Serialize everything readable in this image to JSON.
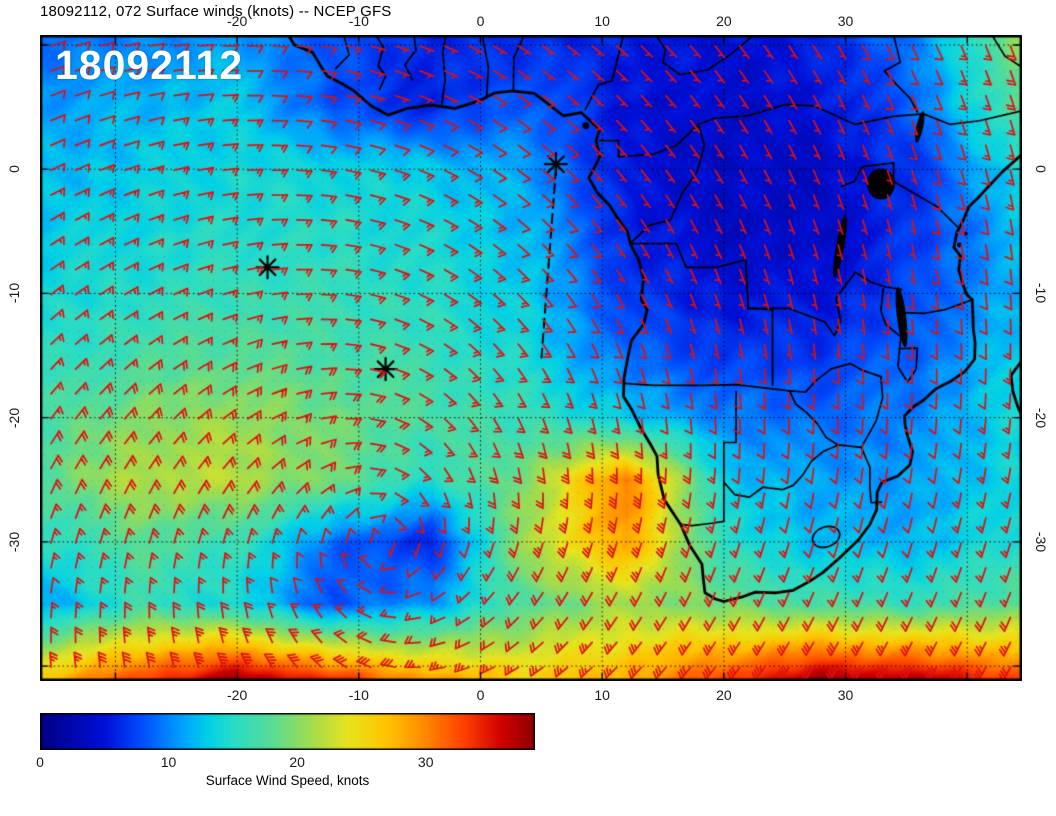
{
  "title": "18092112, 072 Surface winds (knots) -- NCEP GFS",
  "overlay_label": "18092112",
  "style": {
    "barb_color": "#dd1111",
    "line_color": "#000000",
    "text_color": "#1a1a1a"
  },
  "axes": {
    "lon_ticks": [
      -20,
      -10,
      0,
      10,
      20,
      30
    ],
    "lat_ticks": [
      0,
      -10,
      -20,
      -30
    ],
    "lon_range": [
      -36.2,
      44.5
    ],
    "lat_range": [
      10.8,
      -41.2
    ]
  },
  "colorbar": {
    "label": "Surface Wind Speed, knots",
    "ticks": [
      0,
      10,
      20,
      30
    ],
    "min": 0,
    "max": 38.5,
    "stops": [
      [
        0,
        "#000082"
      ],
      [
        5,
        "#0010d8"
      ],
      [
        8,
        "#0050ff"
      ],
      [
        11,
        "#00a0ff"
      ],
      [
        13,
        "#00d0e8"
      ],
      [
        15,
        "#28dcc8"
      ],
      [
        18,
        "#58dc96"
      ],
      [
        21,
        "#a0dc50"
      ],
      [
        24,
        "#e8e41e"
      ],
      [
        27,
        "#ffc400"
      ],
      [
        30,
        "#ff8800"
      ],
      [
        33,
        "#ff4000"
      ],
      [
        36,
        "#d00000"
      ],
      [
        38.5,
        "#8a0000"
      ]
    ]
  },
  "chart_data": {
    "type": "heatmap",
    "title": "18092112, 072 Surface winds (knots) -- NCEP GFS",
    "units": "knots",
    "lon_grid": [
      -36,
      -28,
      -20,
      -12,
      -4,
      4,
      12,
      20,
      28,
      36,
      44
    ],
    "lat_grid": [
      11,
      5,
      0,
      -5,
      -10,
      -15,
      -20,
      -25,
      -30,
      -35,
      -41
    ],
    "speed_grid": [
      [
        9,
        10,
        11,
        8,
        6,
        6,
        6,
        5,
        6,
        10,
        20
      ],
      [
        11,
        12,
        13,
        8,
        6,
        9,
        5,
        4,
        5,
        9,
        18
      ],
      [
        12,
        13,
        14,
        14,
        13,
        11,
        5,
        4,
        4,
        7,
        14
      ],
      [
        13,
        14,
        15,
        15,
        14,
        12,
        6,
        4,
        4,
        7,
        12
      ],
      [
        14,
        15,
        16,
        16,
        15,
        13,
        7,
        5,
        5,
        8,
        12
      ],
      [
        15,
        17,
        18,
        17,
        16,
        14,
        9,
        7,
        7,
        9,
        13
      ],
      [
        17,
        20,
        21,
        19,
        17,
        16,
        13,
        10,
        9,
        10,
        14
      ],
      [
        18,
        22,
        22,
        19,
        15,
        20,
        31,
        13,
        11,
        11,
        14
      ],
      [
        15,
        18,
        16,
        9,
        6,
        22,
        29,
        15,
        12,
        12,
        15
      ],
      [
        11,
        16,
        14,
        8,
        11,
        18,
        21,
        19,
        17,
        16,
        18
      ],
      [
        27,
        33,
        38,
        34,
        29,
        26,
        28,
        33,
        38,
        37,
        33
      ]
    ],
    "circulation_center": {
      "lon": -8,
      "lat": -30,
      "sense": "anticyclonic-southern-hemisphere"
    },
    "markers": [
      {
        "lon": -17.5,
        "lat": -7.9
      },
      {
        "lon": -7.8,
        "lat": -16.1
      },
      {
        "lon": 6.2,
        "lat": 0.4
      }
    ],
    "route": [
      [
        6.2,
        0.0
      ],
      [
        5.0,
        -15.3
      ]
    ]
  },
  "geo": {
    "coastlines": [
      [
        [
          -15.9,
          11.0
        ],
        [
          -15.3,
          10.0
        ],
        [
          -13.8,
          9.4
        ],
        [
          -13.2,
          8.4
        ],
        [
          -12.6,
          7.5
        ],
        [
          -11.4,
          6.9
        ],
        [
          -10.4,
          6.3
        ],
        [
          -9.0,
          5.1
        ],
        [
          -7.6,
          4.35
        ],
        [
          -6.0,
          4.9
        ],
        [
          -4.1,
          5.15
        ],
        [
          -2.1,
          4.9
        ],
        [
          -0.1,
          5.5
        ],
        [
          1.2,
          6.15
        ],
        [
          2.6,
          6.3
        ],
        [
          4.4,
          6.1
        ],
        [
          5.5,
          5.3
        ],
        [
          6.8,
          4.3
        ],
        [
          8.3,
          4.55
        ],
        [
          9.0,
          3.9
        ],
        [
          9.8,
          3.2
        ],
        [
          9.5,
          2.3
        ],
        [
          9.8,
          1.0
        ],
        [
          9.45,
          0.3
        ],
        [
          8.9,
          -0.7
        ],
        [
          9.6,
          -1.9
        ],
        [
          10.6,
          -2.9
        ],
        [
          11.3,
          -4.0
        ],
        [
          12.1,
          -5.1
        ],
        [
          12.35,
          -6.1
        ],
        [
          13.0,
          -7.3
        ],
        [
          13.4,
          -8.8
        ],
        [
          13.2,
          -10.5
        ],
        [
          13.7,
          -11.3
        ],
        [
          13.4,
          -12.5
        ],
        [
          12.4,
          -13.8
        ],
        [
          12.1,
          -15.2
        ],
        [
          11.8,
          -16.8
        ],
        [
          11.75,
          -18.3
        ],
        [
          12.4,
          -19.3
        ],
        [
          13.2,
          -20.9
        ],
        [
          14.0,
          -22.2
        ],
        [
          14.5,
          -23.1
        ],
        [
          14.6,
          -24.6
        ],
        [
          15.1,
          -26.6
        ],
        [
          16.45,
          -28.6
        ],
        [
          17.2,
          -30.3
        ],
        [
          18.2,
          -31.8
        ],
        [
          18.3,
          -32.9
        ],
        [
          18.45,
          -34.1
        ],
        [
          19.3,
          -34.6
        ],
        [
          20.0,
          -34.8
        ],
        [
          21.6,
          -34.4
        ],
        [
          22.6,
          -34.05
        ],
        [
          24.2,
          -34.1
        ],
        [
          25.7,
          -33.9
        ],
        [
          27.0,
          -33.2
        ],
        [
          28.1,
          -32.5
        ],
        [
          29.5,
          -31.3
        ],
        [
          31.05,
          -29.85
        ],
        [
          32.0,
          -28.6
        ],
        [
          32.55,
          -27.4
        ],
        [
          32.6,
          -26.0
        ],
        [
          33.0,
          -25.2
        ],
        [
          34.3,
          -24.7
        ],
        [
          35.3,
          -23.8
        ],
        [
          35.5,
          -22.7
        ],
        [
          35.1,
          -21.5
        ],
        [
          34.9,
          -20.6
        ],
        [
          34.85,
          -19.85
        ],
        [
          35.6,
          -19.1
        ],
        [
          36.4,
          -18.6
        ],
        [
          37.4,
          -17.7
        ],
        [
          38.6,
          -17.1
        ],
        [
          39.8,
          -16.3
        ],
        [
          40.6,
          -15.3
        ],
        [
          40.65,
          -14.0
        ],
        [
          40.5,
          -12.9
        ],
        [
          40.45,
          -11.4
        ],
        [
          40.4,
          -10.5
        ],
        [
          39.9,
          -10.0
        ],
        [
          39.6,
          -9.1
        ],
        [
          39.3,
          -8.1
        ],
        [
          39.45,
          -7.0
        ],
        [
          38.9,
          -6.3
        ],
        [
          39.15,
          -5.1
        ],
        [
          39.7,
          -4.05
        ],
        [
          40.15,
          -3.0
        ],
        [
          40.9,
          -2.3
        ],
        [
          41.5,
          -1.65
        ],
        [
          42.9,
          -0.2
        ],
        [
          44.5,
          1.2
        ]
      ],
      [
        [
          44.5,
          -15.4
        ],
        [
          43.6,
          -16.6
        ],
        [
          43.75,
          -17.9
        ],
        [
          44.15,
          -19.1
        ],
        [
          44.5,
          -19.9
        ]
      ]
    ],
    "borders": [
      [
        [
          -11.3,
          11
        ],
        [
          -10.8,
          9.2
        ],
        [
          -11.9,
          8.1
        ]
      ],
      [
        [
          -8.7,
          11
        ],
        [
          -8.0,
          9.8
        ],
        [
          -8.4,
          8.3
        ],
        [
          -7.8,
          7.5
        ],
        [
          -8.3,
          6.4
        ]
      ],
      [
        [
          -5.5,
          11
        ],
        [
          -5.3,
          9.6
        ],
        [
          -6.2,
          8.4
        ],
        [
          -5.6,
          7.2
        ]
      ],
      [
        [
          -3.2,
          5.1
        ],
        [
          -2.9,
          7.2
        ],
        [
          -3.1,
          9.4
        ],
        [
          -2.8,
          11
        ]
      ],
      [
        [
          0.5,
          5.8
        ],
        [
          0.65,
          8.2
        ],
        [
          0.1,
          11
        ]
      ],
      [
        [
          2.7,
          6.3
        ],
        [
          2.75,
          9.0
        ],
        [
          3.7,
          11
        ]
      ],
      [
        [
          8.6,
          4.8
        ],
        [
          9.7,
          6.8
        ],
        [
          10.8,
          7.1
        ],
        [
          11.8,
          11
        ]
      ],
      [
        [
          9.8,
          2.3
        ],
        [
          11.35,
          2.3
        ],
        [
          11.35,
          1.0
        ],
        [
          14.2,
          1.2
        ],
        [
          16.1,
          1.9
        ],
        [
          17.9,
          3.6
        ],
        [
          19.2,
          4.1
        ],
        [
          22,
          4.3
        ],
        [
          25,
          5.2
        ],
        [
          27.4,
          5.1
        ],
        [
          30.8,
          3.6
        ],
        [
          33.9,
          4.25
        ],
        [
          36.4,
          4.45
        ],
        [
          38.6,
          3.6
        ],
        [
          41,
          3.9
        ],
        [
          44.5,
          4.7
        ]
      ],
      [
        [
          12.4,
          -5.9
        ],
        [
          13.9,
          -4.5
        ],
        [
          15.6,
          -4.1
        ],
        [
          16.6,
          -1.9
        ],
        [
          17.8,
          -0.2
        ],
        [
          18.4,
          1.9
        ],
        [
          17.9,
          3.6
        ]
      ],
      [
        [
          12.4,
          -6.0
        ],
        [
          16.1,
          -6.0
        ],
        [
          16.9,
          -7.9
        ],
        [
          19.4,
          -7.9
        ],
        [
          21.8,
          -7.3
        ],
        [
          22.0,
          -11.2
        ]
      ],
      [
        [
          22.0,
          -11.2
        ],
        [
          25.3,
          -11.2
        ],
        [
          28.3,
          -12.3
        ],
        [
          29.1,
          -13.4
        ],
        [
          29.6,
          -12.2
        ],
        [
          29.2,
          -10.4
        ],
        [
          30.8,
          -8.3
        ]
      ],
      [
        [
          22.0,
          -11.2
        ],
        [
          24.0,
          -11.3
        ],
        [
          24.0,
          -17.4
        ]
      ],
      [
        [
          11.8,
          -17.25
        ],
        [
          14.2,
          -17.4
        ],
        [
          18.4,
          -17.4
        ],
        [
          21.0,
          -17.35
        ],
        [
          23.3,
          -17.6
        ],
        [
          25.4,
          -17.85
        ]
      ],
      [
        [
          21.0,
          -17.9
        ],
        [
          21.0,
          -22.0
        ],
        [
          20.0,
          -22.0
        ],
        [
          20.0,
          -28.35
        ],
        [
          19.0,
          -28.5
        ],
        [
          17.4,
          -28.7
        ],
        [
          16.45,
          -28.6
        ]
      ],
      [
        [
          20.0,
          -25.2
        ],
        [
          20.9,
          -26.2
        ],
        [
          22.1,
          -26.4
        ],
        [
          23.2,
          -25.6
        ],
        [
          24.8,
          -25.8
        ],
        [
          25.7,
          -25.45
        ],
        [
          26.5,
          -24.6
        ],
        [
          27.2,
          -23.5
        ],
        [
          28.2,
          -22.7
        ],
        [
          29.4,
          -22.2
        ],
        [
          31.3,
          -22.4
        ]
      ],
      [
        [
          25.4,
          -17.85
        ],
        [
          25.9,
          -18.9
        ],
        [
          26.8,
          -19.6
        ],
        [
          27.7,
          -20.5
        ],
        [
          28.4,
          -21.6
        ],
        [
          29.4,
          -22.2
        ]
      ],
      [
        [
          25.4,
          -17.85
        ],
        [
          26.7,
          -17.95
        ],
        [
          27.6,
          -17.0
        ],
        [
          28.85,
          -16.05
        ],
        [
          30.4,
          -15.65
        ],
        [
          31.4,
          -16.2
        ],
        [
          32.9,
          -16.7
        ]
      ],
      [
        [
          32.9,
          -16.7
        ],
        [
          33.05,
          -18.4
        ],
        [
          32.5,
          -20.3
        ],
        [
          31.3,
          -22.4
        ]
      ],
      [
        [
          31.3,
          -22.4
        ],
        [
          32.0,
          -24.0
        ],
        [
          32.0,
          -25.6
        ],
        [
          32.1,
          -26.85
        ],
        [
          32.95,
          -26.8
        ]
      ],
      [
        [
          33.95,
          -1.0
        ],
        [
          37.5,
          -3.0
        ],
        [
          39.2,
          -4.65
        ]
      ],
      [
        [
          40.45,
          -10.5
        ],
        [
          38.2,
          -11.3
        ],
        [
          36.5,
          -11.6
        ],
        [
          34.6,
          -11.55
        ]
      ],
      [
        [
          34.4,
          -14.45
        ],
        [
          35.9,
          -14.4
        ],
        [
          35.8,
          -16.1
        ],
        [
          35.1,
          -17.15
        ],
        [
          34.3,
          -15.9
        ],
        [
          34.55,
          -13.5
        ],
        [
          33.3,
          -12.5
        ],
        [
          32.9,
          -11.4
        ],
        [
          33.1,
          -9.6
        ]
      ],
      [
        [
          30.8,
          -8.3
        ],
        [
          32.1,
          -9.1
        ],
        [
          33.4,
          -9.5
        ],
        [
          34.6,
          -9.7
        ]
      ],
      [
        [
          14.3,
          11
        ],
        [
          15.2,
          9.6
        ],
        [
          15.0,
          8.6
        ],
        [
          16.4,
          7.6
        ],
        [
          18.7,
          8.0
        ],
        [
          20.5,
          9.2
        ],
        [
          22.6,
          10.9
        ]
      ],
      [
        [
          33.9,
          11
        ],
        [
          34.5,
          8.6
        ],
        [
          33.2,
          7.9
        ],
        [
          34.1,
          6.9
        ],
        [
          35.3,
          5.7
        ],
        [
          35.9,
          4.6
        ]
      ],
      [
        [
          41.9,
          11
        ],
        [
          43.1,
          9.1
        ],
        [
          44.5,
          8.2
        ]
      ],
      [
        [
          29.6,
          -1.4
        ],
        [
          30.7,
          -1.0
        ],
        [
          31.4,
          0.2
        ],
        [
          33.95,
          0.5
        ],
        [
          33.95,
          -1.0
        ]
      ]
    ],
    "lakes": [
      {
        "lon": 32.9,
        "lat": -1.2,
        "rx": 1.15,
        "ry": 1.25,
        "rot": 0
      },
      {
        "lon": 29.55,
        "lat": -6.2,
        "rx": 0.33,
        "ry": 2.55,
        "rot": 10
      },
      {
        "lon": 34.6,
        "lat": -11.9,
        "rx": 0.38,
        "ry": 2.45,
        "rot": -7
      },
      {
        "lon": 36.1,
        "lat": 3.4,
        "rx": 0.28,
        "ry": 1.3,
        "rot": 12
      }
    ],
    "rings": [
      {
        "lon": 28.4,
        "lat": -29.6,
        "rx": 1.15,
        "ry": 0.8,
        "rot": -20
      }
    ],
    "islands": [
      {
        "lon": 8.65,
        "lat": 3.5,
        "r": 0.28
      },
      {
        "lon": 39.35,
        "lat": -6.1,
        "r": 0.2
      },
      {
        "lon": 39.85,
        "lat": -5.2,
        "r": 0.16
      }
    ]
  }
}
